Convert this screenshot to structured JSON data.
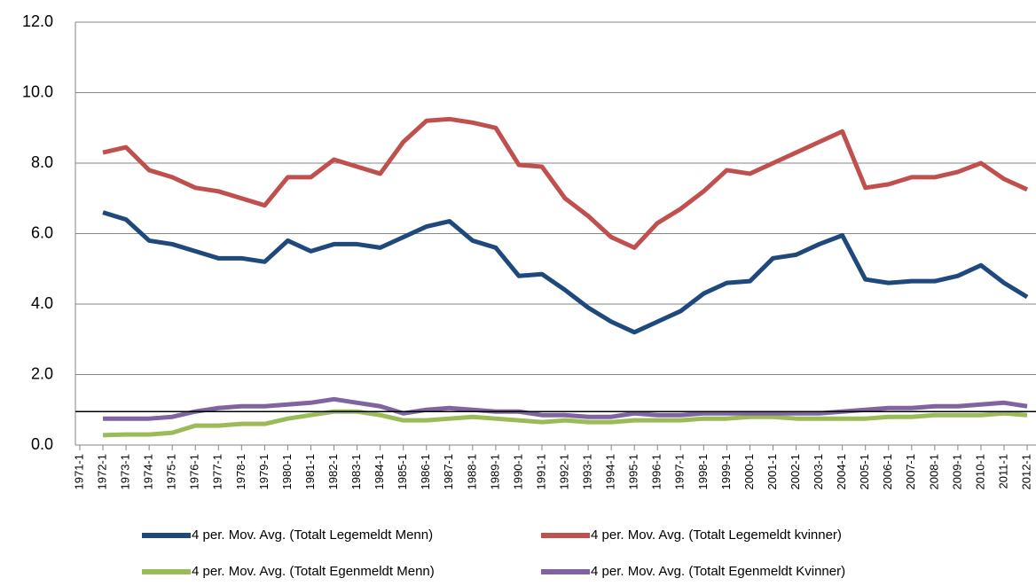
{
  "chart_data": {
    "type": "line",
    "categories": [
      "1971-1",
      "1972-1",
      "1973-1",
      "1974-1",
      "1975-1",
      "1976-1",
      "1977-1",
      "1978-1",
      "1979-1",
      "1980-1",
      "1981-1",
      "1982-1",
      "1983-1",
      "1984-1",
      "1985-1",
      "1986-1",
      "1987-1",
      "1988-1",
      "1989-1",
      "1990-1",
      "1991-1",
      "1992-1",
      "1993-1",
      "1994-1",
      "1995-1",
      "1996-1",
      "1997-1",
      "1998-1",
      "1999-1",
      "2000-1",
      "2001-1",
      "2002-1",
      "2003-1",
      "2004-1",
      "2005-1",
      "2006-1",
      "2007-1",
      "2008-1",
      "2009-1",
      "2010-1",
      "2011-1",
      "2012-1"
    ],
    "series": [
      {
        "name": "4 per. Mov. Avg. (Totalt Legemeldt Menn)",
        "color": "#1f497d",
        "values": [
          null,
          6.6,
          6.4,
          5.8,
          5.7,
          5.5,
          5.3,
          5.3,
          5.2,
          5.8,
          5.5,
          5.7,
          5.7,
          5.6,
          5.9,
          6.2,
          6.35,
          5.8,
          5.6,
          4.8,
          4.85,
          4.4,
          3.9,
          3.5,
          3.2,
          3.5,
          3.8,
          4.3,
          4.6,
          4.65,
          5.3,
          5.4,
          5.7,
          5.95,
          4.7,
          4.6,
          4.65,
          4.65,
          4.8,
          5.1,
          4.6,
          4.2
        ]
      },
      {
        "name": "4 per. Mov. Avg. (Totalt Legemeldt kvinner)",
        "color": "#c0504d",
        "values": [
          null,
          8.3,
          8.45,
          7.8,
          7.6,
          7.3,
          7.2,
          7.0,
          6.8,
          7.6,
          7.6,
          8.1,
          7.9,
          7.7,
          8.6,
          9.2,
          9.25,
          9.15,
          9.0,
          7.95,
          7.9,
          7.0,
          6.5,
          5.9,
          5.6,
          6.3,
          6.7,
          7.2,
          7.8,
          7.7,
          8.0,
          8.3,
          8.6,
          8.9,
          7.3,
          7.4,
          7.6,
          7.6,
          7.75,
          8.0,
          7.55,
          7.25
        ]
      },
      {
        "name": "4 per. Mov. Avg. (Totalt Egenmeldt Menn)",
        "color": "#9bbb59",
        "values": [
          null,
          0.28,
          0.3,
          0.3,
          0.35,
          0.55,
          0.55,
          0.6,
          0.6,
          0.75,
          0.85,
          0.95,
          0.95,
          0.85,
          0.7,
          0.7,
          0.75,
          0.8,
          0.75,
          0.7,
          0.65,
          0.7,
          0.65,
          0.65,
          0.7,
          0.7,
          0.7,
          0.75,
          0.75,
          0.8,
          0.8,
          0.75,
          0.75,
          0.75,
          0.75,
          0.8,
          0.8,
          0.85,
          0.85,
          0.85,
          0.9,
          0.85
        ]
      },
      {
        "name": "4 per. Mov. Avg. (Totalt Egenmeldt Kvinner)",
        "color": "#8064a2",
        "values": [
          null,
          0.75,
          0.75,
          0.75,
          0.8,
          0.95,
          1.05,
          1.1,
          1.1,
          1.15,
          1.2,
          1.3,
          1.2,
          1.1,
          0.9,
          1.0,
          1.05,
          1.0,
          0.95,
          0.95,
          0.85,
          0.85,
          0.8,
          0.8,
          0.9,
          0.85,
          0.85,
          0.9,
          0.9,
          0.9,
          0.9,
          0.9,
          0.9,
          0.95,
          1.0,
          1.05,
          1.05,
          1.1,
          1.1,
          1.15,
          1.2,
          1.1
        ]
      }
    ],
    "hline": 0.95,
    "ylim": [
      0,
      12
    ],
    "yticks": [
      {
        "value": 0,
        "label": "0.0"
      },
      {
        "value": 2,
        "label": "2.0"
      },
      {
        "value": 4,
        "label": "4.0"
      },
      {
        "value": 6,
        "label": "6.0"
      },
      {
        "value": 8,
        "label": "8.0"
      },
      {
        "value": 10,
        "label": "10.0"
      },
      {
        "value": 12,
        "label": "12.0"
      }
    ],
    "grid": true,
    "legend": "bottom"
  }
}
